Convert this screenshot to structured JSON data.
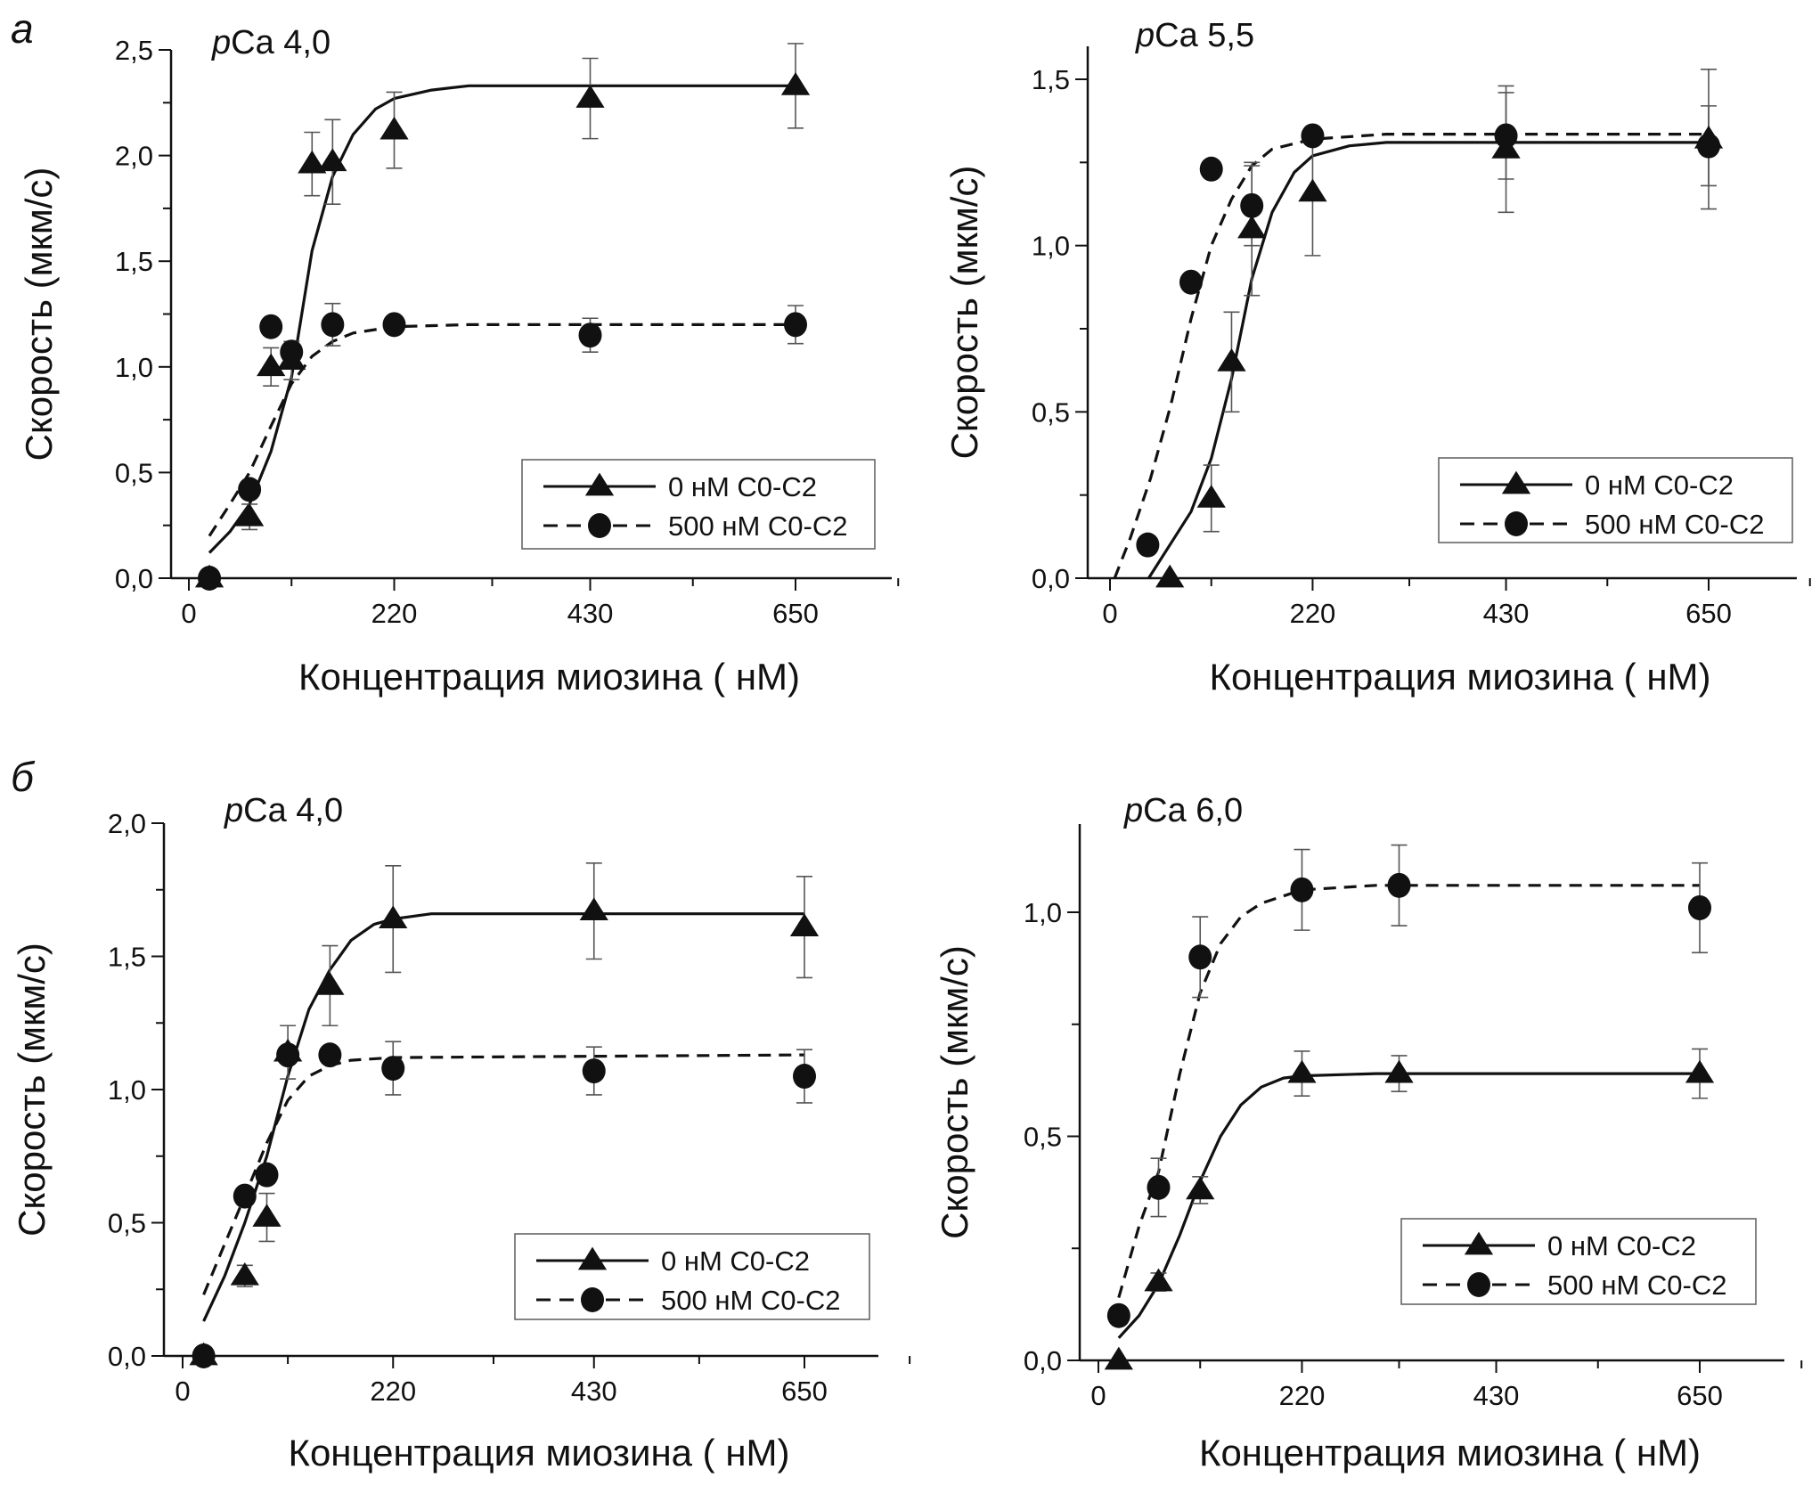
{
  "figure": {
    "panel_letters": [
      "а",
      "б"
    ],
    "axis_xlabel": "Концентрация миозина ( нМ)",
    "axis_ylabel": "Скорость (мкм/с)",
    "colors": {
      "ink": "#111111",
      "errorbar": "#555555",
      "legend_border": "#666666",
      "background": "#ffffff"
    }
  },
  "chart_data": [
    {
      "id": "a-left",
      "type": "scatter",
      "panel_letter": "а",
      "title_prefix": "p",
      "title": "Ca 4,0",
      "xlabel": "Концентрация миозина ( нМ)",
      "ylabel": "Скорость (мкм/с)",
      "xlim": [
        -20,
        760
      ],
      "ylim": [
        0,
        2.5
      ],
      "xticks": [
        0,
        220,
        430,
        650
      ],
      "xtick_labels": [
        "0",
        "220",
        "430",
        "650"
      ],
      "x_minor_ticks": [
        110,
        325,
        540,
        760
      ],
      "yticks": [
        0,
        0.5,
        1.0,
        1.5,
        2.0,
        2.5
      ],
      "ytick_labels": [
        "0,0",
        "0,5",
        "1,0",
        "1,5",
        "2,0",
        "2,5"
      ],
      "y_minor_ticks": [
        0.25,
        0.75,
        1.25,
        1.75,
        2.25
      ],
      "legend_position": "bottom-right",
      "series": [
        {
          "name": "0 нМ C0-C2",
          "marker": "triangle",
          "line": "solid",
          "x": [
            22,
            65,
            88,
            110,
            132,
            154,
            220,
            430,
            650
          ],
          "y": [
            0.0,
            0.29,
            1.0,
            1.03,
            1.96,
            1.97,
            2.12,
            2.27,
            2.33
          ],
          "err": [
            0,
            0.06,
            0.09,
            0.09,
            0.15,
            0.2,
            0.18,
            0.19,
            0.2
          ],
          "fit_x": [
            22,
            44,
            65,
            88,
            110,
            132,
            154,
            176,
            200,
            220,
            260,
            300,
            650
          ],
          "fit_y": [
            0.12,
            0.22,
            0.35,
            0.6,
            0.95,
            1.55,
            1.9,
            2.1,
            2.22,
            2.27,
            2.31,
            2.33,
            2.33
          ]
        },
        {
          "name": "500 нМ C0-C2",
          "marker": "circle",
          "line": "dashed",
          "x": [
            22,
            65,
            88,
            110,
            154,
            220,
            430,
            650
          ],
          "y": [
            0.0,
            0.42,
            1.19,
            1.07,
            1.2,
            1.2,
            1.15,
            1.2
          ],
          "err": [
            0,
            0,
            0,
            0,
            0.1,
            0,
            0.08,
            0.09
          ],
          "fit_x": [
            22,
            44,
            65,
            88,
            110,
            132,
            154,
            176,
            220,
            300,
            650
          ],
          "fit_y": [
            0.2,
            0.35,
            0.5,
            0.72,
            0.92,
            1.05,
            1.12,
            1.16,
            1.19,
            1.2,
            1.2
          ]
        }
      ]
    },
    {
      "id": "a-right",
      "type": "scatter",
      "title_prefix": "p",
      "title": "Ca 5,5",
      "xlabel": "Концентрация миозина ( нМ)",
      "ylabel": "Скорость (мкм/с)",
      "xlim": [
        -20,
        760
      ],
      "ylim": [
        0,
        1.6
      ],
      "xticks": [
        0,
        220,
        430,
        650
      ],
      "xtick_labels": [
        "0",
        "220",
        "430",
        "650"
      ],
      "x_minor_ticks": [
        110,
        325,
        540,
        760
      ],
      "yticks": [
        0,
        0.5,
        1.0,
        1.5
      ],
      "ytick_labels": [
        "0,0",
        "0,5",
        "1,0",
        "1,5"
      ],
      "y_minor_ticks": [
        0.25,
        0.75,
        1.25
      ],
      "legend_position": "bottom-right",
      "series": [
        {
          "name": "0 нМ C0-C2",
          "marker": "triangle",
          "line": "solid",
          "x": [
            65,
            110,
            132,
            154,
            220,
            430,
            650
          ],
          "y": [
            0.0,
            0.24,
            0.65,
            1.05,
            1.16,
            1.29,
            1.32
          ],
          "err": [
            0,
            0.1,
            0.15,
            0.2,
            0.19,
            0.19,
            0.21
          ],
          "fit_x": [
            42,
            65,
            88,
            110,
            132,
            154,
            176,
            200,
            220,
            260,
            300,
            650
          ],
          "fit_y": [
            0.0,
            0.1,
            0.2,
            0.36,
            0.6,
            0.9,
            1.1,
            1.22,
            1.27,
            1.3,
            1.31,
            1.31
          ]
        },
        {
          "name": "500 нМ C0-C2",
          "marker": "circle",
          "line": "dashed",
          "x": [
            41,
            88,
            110,
            154,
            220,
            430,
            650
          ],
          "y": [
            0.1,
            0.89,
            1.23,
            1.12,
            1.33,
            1.33,
            1.3
          ],
          "err": [
            0,
            0,
            0,
            0.12,
            0,
            0.13,
            0.12
          ],
          "fit_x": [
            5,
            22,
            44,
            66,
            88,
            110,
            132,
            154,
            176,
            220,
            300,
            650
          ],
          "fit_y": [
            0.0,
            0.12,
            0.3,
            0.52,
            0.78,
            1.0,
            1.14,
            1.24,
            1.29,
            1.32,
            1.335,
            1.335
          ]
        }
      ]
    },
    {
      "id": "b-left",
      "type": "scatter",
      "panel_letter": "б",
      "title_prefix": "p",
      "title": "Ca 4,0",
      "xlabel": "Концентрация миозина ( нМ)",
      "ylabel": "Скорость (мкм/с)",
      "xlim": [
        -20,
        760
      ],
      "ylim": [
        0,
        2.0
      ],
      "xticks": [
        0,
        220,
        430,
        650
      ],
      "xtick_labels": [
        "0",
        "220",
        "430",
        "650"
      ],
      "x_minor_ticks": [
        110,
        325,
        540,
        760
      ],
      "yticks": [
        0,
        0.5,
        1.0,
        1.5,
        2.0
      ],
      "ytick_labels": [
        "0,0",
        "0,5",
        "1,0",
        "1,5",
        "2,0"
      ],
      "y_minor_ticks": [
        0.25,
        0.75,
        1.25,
        1.75
      ],
      "legend_position": "bottom-right",
      "series": [
        {
          "name": "0 нМ C0-C2",
          "marker": "triangle",
          "line": "solid",
          "x": [
            22,
            65,
            88,
            110,
            154,
            220,
            430,
            650
          ],
          "y": [
            0.0,
            0.3,
            0.52,
            1.14,
            1.39,
            1.64,
            1.67,
            1.61
          ],
          "err": [
            0,
            0.04,
            0.09,
            0.1,
            0.15,
            0.2,
            0.18,
            0.19
          ],
          "fit_x": [
            22,
            44,
            65,
            88,
            110,
            132,
            154,
            176,
            200,
            220,
            260,
            650
          ],
          "fit_y": [
            0.13,
            0.3,
            0.5,
            0.75,
            1.05,
            1.3,
            1.45,
            1.56,
            1.62,
            1.64,
            1.66,
            1.66
          ]
        },
        {
          "name": "500 нМ C0-C2",
          "marker": "circle",
          "line": "dashed",
          "x": [
            22,
            65,
            88,
            110,
            154,
            220,
            430,
            650
          ],
          "y": [
            0.0,
            0.6,
            0.68,
            1.13,
            1.13,
            1.08,
            1.07,
            1.05
          ],
          "err": [
            0,
            0,
            0,
            0,
            0,
            0.1,
            0.09,
            0.1
          ],
          "fit_x": [
            22,
            44,
            65,
            88,
            110,
            132,
            154,
            176,
            220,
            650
          ],
          "fit_y": [
            0.23,
            0.42,
            0.6,
            0.8,
            0.96,
            1.05,
            1.09,
            1.11,
            1.12,
            1.13
          ]
        }
      ]
    },
    {
      "id": "b-right",
      "type": "scatter",
      "title_prefix": "p",
      "title": "Ca 6,0",
      "xlabel": "Концентрация миозина ( нМ)",
      "ylabel": "Скорость (мкм/с)",
      "xlim": [
        -20,
        760
      ],
      "ylim": [
        0,
        1.2
      ],
      "xticks": [
        0,
        220,
        430,
        650
      ],
      "xtick_labels": [
        "0",
        "220",
        "430",
        "650"
      ],
      "x_minor_ticks": [
        110,
        325,
        540,
        760
      ],
      "yticks": [
        0,
        0.5,
        1.0
      ],
      "ytick_labels": [
        "0,0",
        "0,5",
        "1,0"
      ],
      "y_minor_ticks": [
        0.25,
        0.75
      ],
      "legend_position": "bottom-right",
      "series": [
        {
          "name": "0 нМ C0-C2",
          "marker": "triangle",
          "line": "solid",
          "x": [
            22,
            65,
            110,
            220,
            325,
            650
          ],
          "y": [
            0.0,
            0.175,
            0.38,
            0.64,
            0.64,
            0.64
          ],
          "err": [
            0,
            0.02,
            0.03,
            0.05,
            0.04,
            0.055
          ],
          "fit_x": [
            22,
            44,
            65,
            88,
            110,
            132,
            154,
            176,
            200,
            220,
            300,
            650
          ],
          "fit_y": [
            0.05,
            0.1,
            0.17,
            0.28,
            0.4,
            0.5,
            0.57,
            0.61,
            0.63,
            0.635,
            0.64,
            0.64
          ]
        },
        {
          "name": "500 нМ C0-C2",
          "marker": "circle",
          "line": "dashed",
          "x": [
            22,
            65,
            110,
            220,
            325,
            650
          ],
          "y": [
            0.1,
            0.386,
            0.9,
            1.05,
            1.06,
            1.01
          ],
          "err": [
            0,
            0.065,
            0.09,
            0.09,
            0.09,
            0.1
          ],
          "fit_x": [
            22,
            44,
            65,
            88,
            110,
            132,
            154,
            176,
            220,
            300,
            650
          ],
          "fit_y": [
            0.14,
            0.3,
            0.42,
            0.64,
            0.82,
            0.93,
            0.99,
            1.02,
            1.05,
            1.06,
            1.06
          ]
        }
      ]
    }
  ]
}
